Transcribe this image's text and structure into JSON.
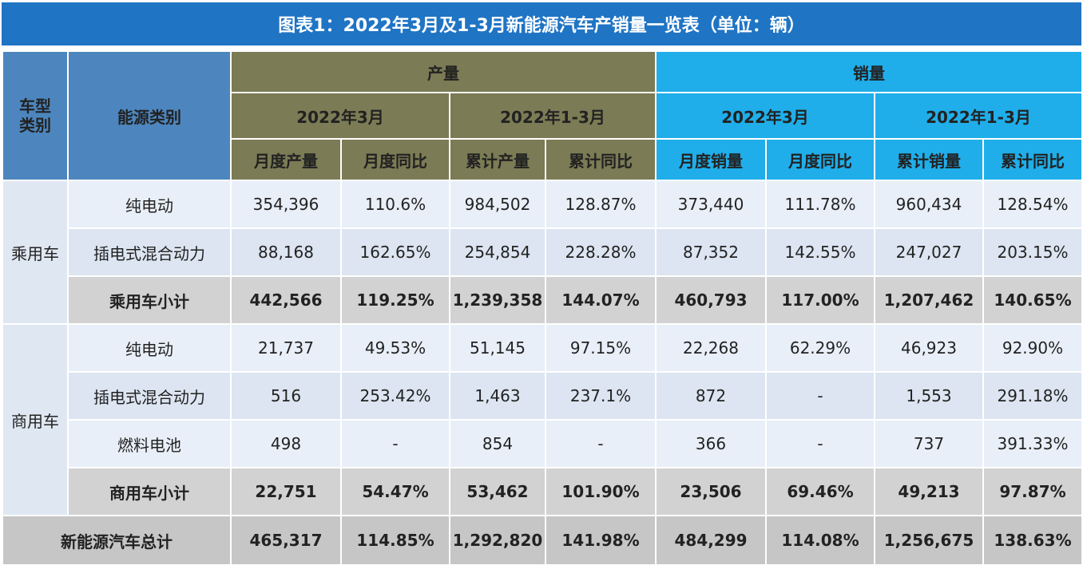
{
  "title": "图表1：2022年3月及1-3月新能源汽车产销量一览表（单位：辆）",
  "header": {
    "vehicle_type": "车型类别",
    "energy_type": "能源类别",
    "production": "产量",
    "sales": "销量",
    "period_month": "2022年3月",
    "period_ytd": "2022年1-3月",
    "cols": [
      "月度产量",
      "月度同比",
      "累计产量",
      "累计同比",
      "月度销量",
      "月度同比",
      "累计销量",
      "累计同比"
    ]
  },
  "groups": {
    "passenger": "乘用车",
    "commercial": "商用车"
  },
  "rows": [
    {
      "label": "纯电动",
      "values": [
        "354,396",
        "110.6%",
        "984,502",
        "128.87%",
        "373,440",
        "111.78%",
        "960,434",
        "128.54%"
      ]
    },
    {
      "label": "插电式混合动力",
      "values": [
        "88,168",
        "162.65%",
        "254,854",
        "228.28%",
        "87,352",
        "142.55%",
        "247,027",
        "203.15%"
      ]
    },
    {
      "label": "乘用车小计",
      "values": [
        "442,566",
        "119.25%",
        "1,239,358",
        "144.07%",
        "460,793",
        "117.00%",
        "1,207,462",
        "140.65%"
      ]
    },
    {
      "label": "纯电动",
      "values": [
        "21,737",
        "49.53%",
        "51,145",
        "97.15%",
        "22,268",
        "62.29%",
        "46,923",
        "92.90%"
      ]
    },
    {
      "label": "插电式混合动力",
      "values": [
        "516",
        "253.42%",
        "1,463",
        "237.1%",
        "872",
        "-",
        "1,553",
        "291.18%"
      ]
    },
    {
      "label": "燃料电池",
      "values": [
        "498",
        "-",
        "854",
        "-",
        "366",
        "-",
        "737",
        "391.33%"
      ]
    },
    {
      "label": "商用车小计",
      "values": [
        "22,751",
        "54.47%",
        "53,462",
        "101.90%",
        "23,506",
        "69.46%",
        "49,213",
        "97.87%"
      ]
    },
    {
      "label": "新能源汽车总计",
      "values": [
        "465,317",
        "114.85%",
        "1,292,820",
        "141.98%",
        "484,299",
        "114.08%",
        "1,256,675",
        "138.63%"
      ]
    }
  ],
  "colors": {
    "title_bg": "#1f74c4",
    "header_blue": "#4d86be",
    "header_olive": "#7b7b55",
    "header_cyan": "#1faeea",
    "row_light": "#e9eff8",
    "row_mid": "#dce5f1",
    "subtotal": "#d2d2d2",
    "total": "#c6c6c6"
  }
}
